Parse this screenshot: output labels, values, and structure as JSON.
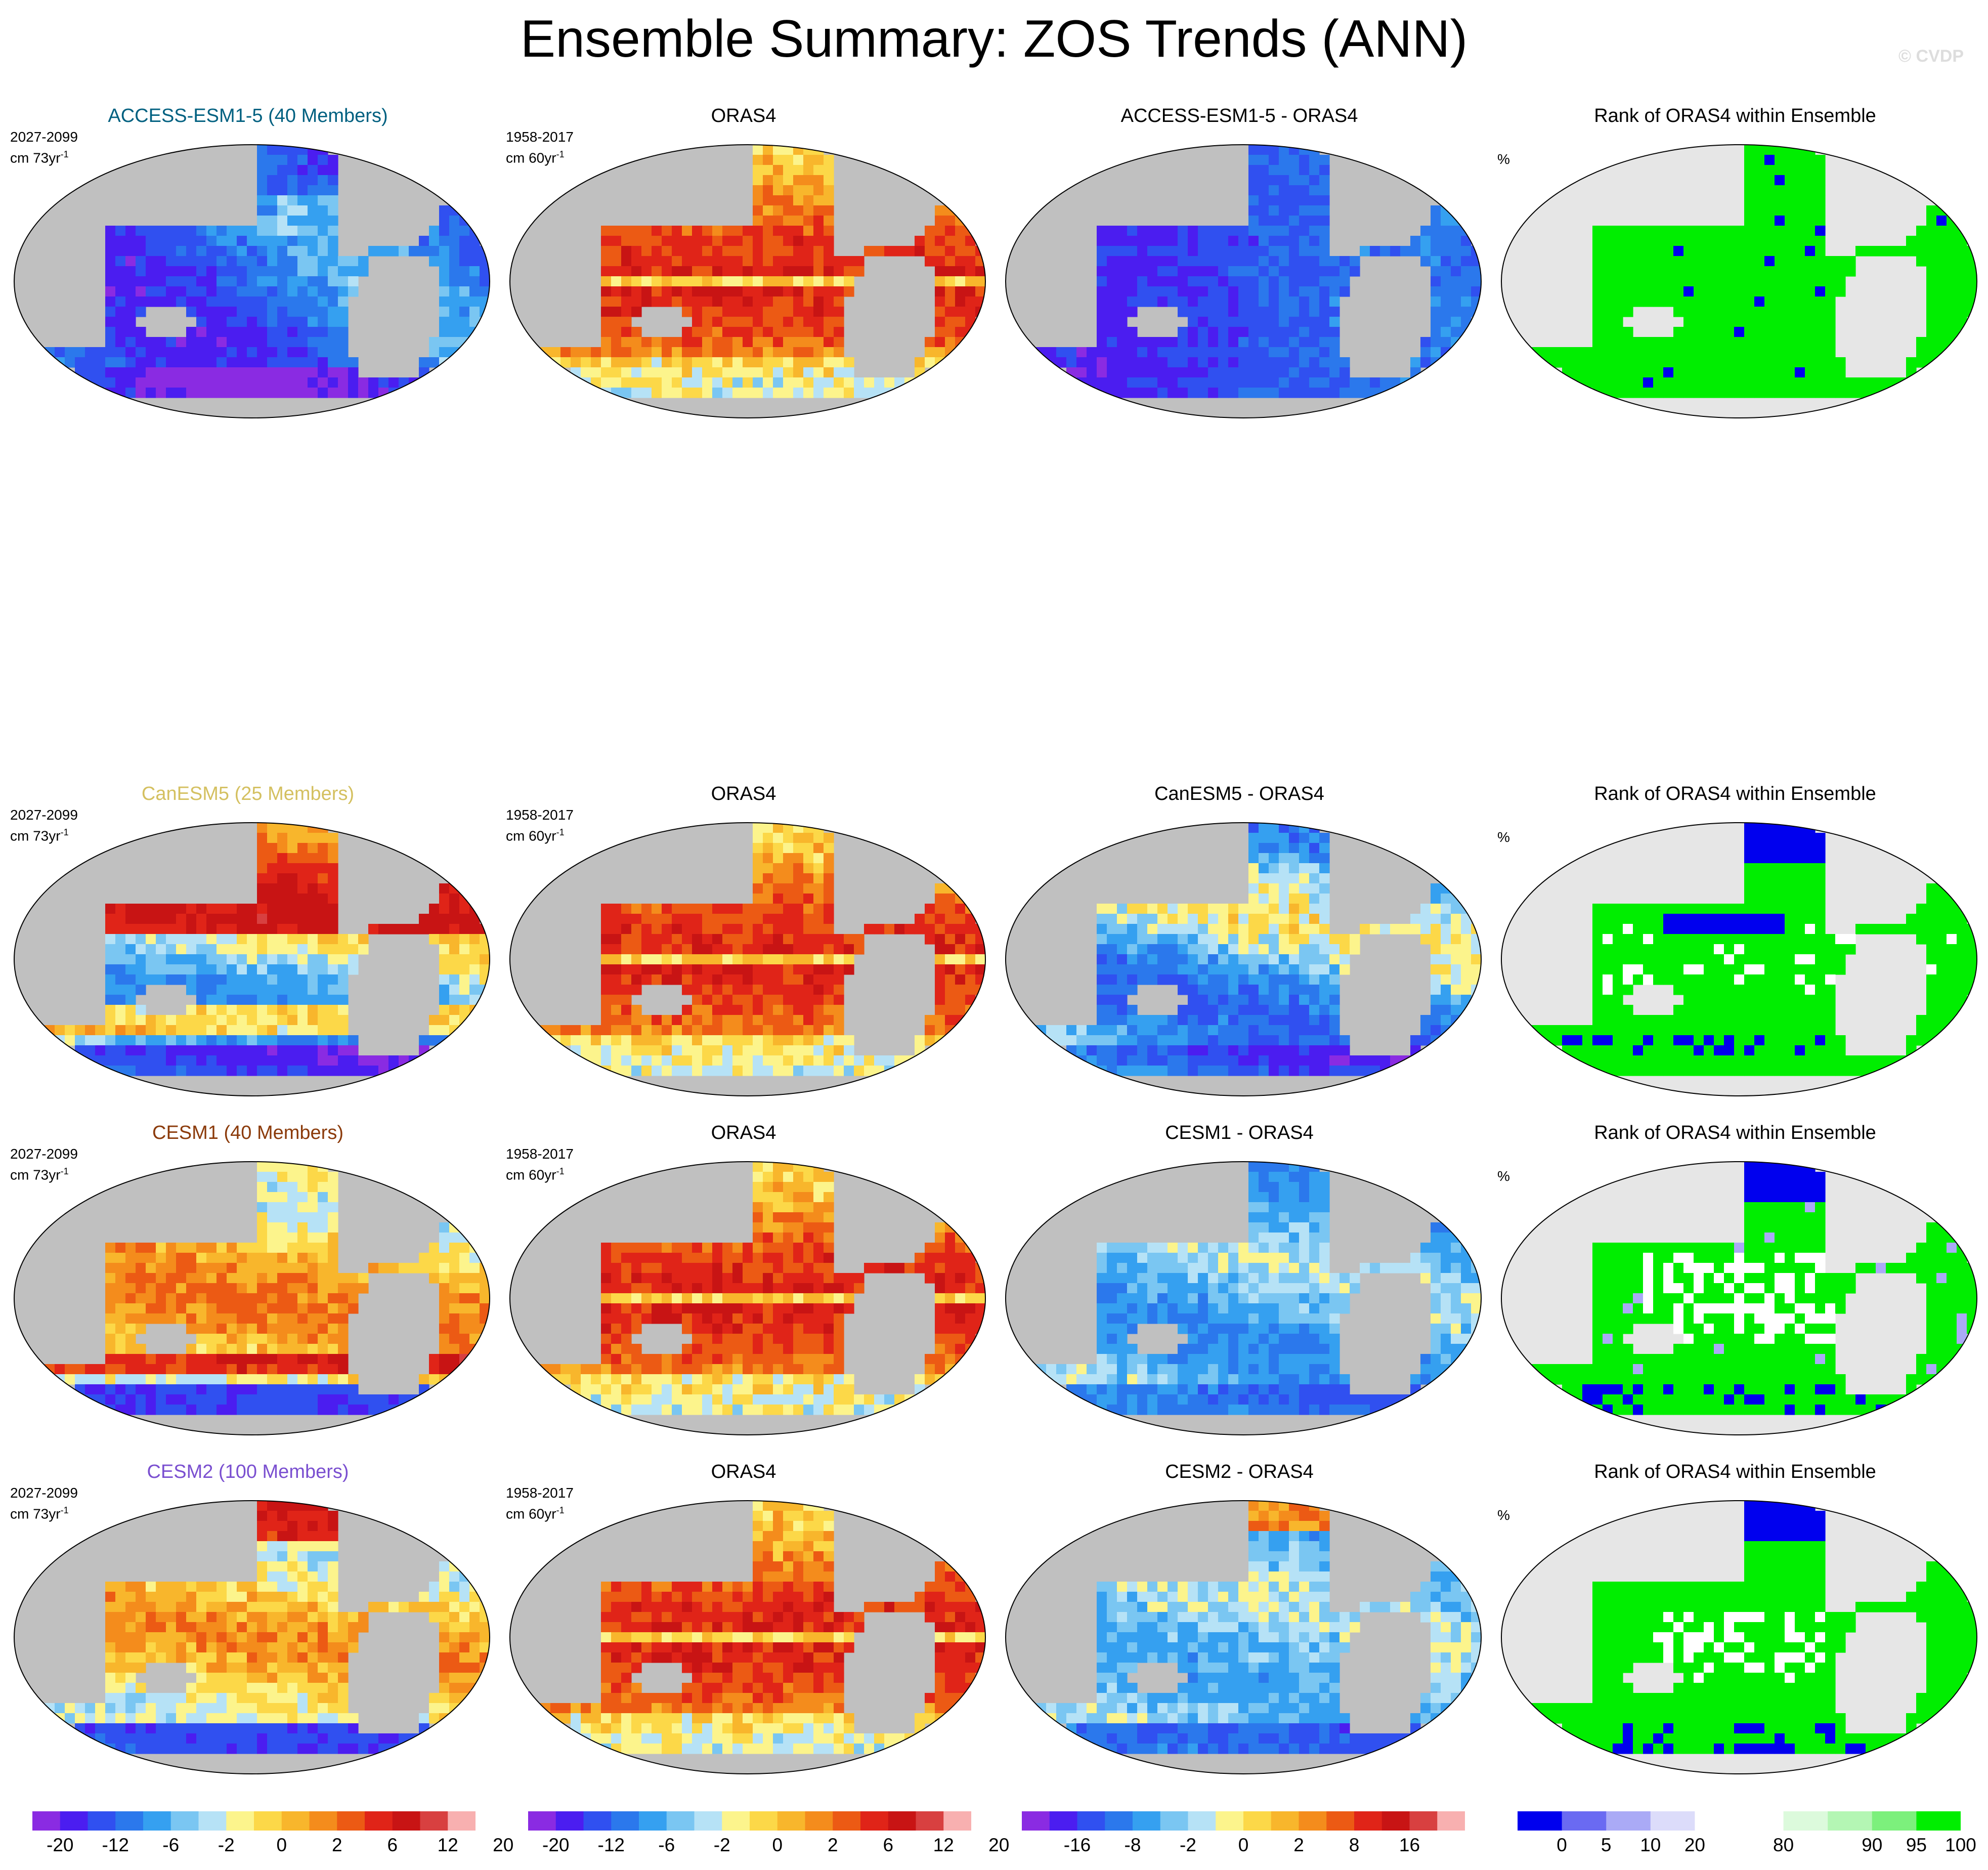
{
  "title": "Ensemble Summary: ZOS Trends (ANN)",
  "credit": "© CVDP",
  "colors": {
    "land": "#c0c0c0",
    "coast": "#8a8a8a",
    "trend_scale": [
      "#8a2be2",
      "#4b1df0",
      "#3050f0",
      "#2b78ec",
      "#35a0f0",
      "#7ac6f2",
      "#b6e2f6",
      "#fcf48c",
      "#fcd848",
      "#f8b62c",
      "#f48c1c",
      "#ec5a14",
      "#e02418",
      "#c81414",
      "#d84040",
      "#f8b0b0"
    ],
    "diff_scale": [
      "#8a2be2",
      "#4b1df0",
      "#3050f0",
      "#2b78ec",
      "#35a0f0",
      "#7ac6f2",
      "#b6e2f6",
      "#fcf48c",
      "#fcd848",
      "#f8b62c",
      "#f48c1c",
      "#ec5a14",
      "#e02418",
      "#c81414",
      "#d84040",
      "#f8b0b0"
    ],
    "rank_scale": [
      "#0000ee",
      "#6a6af2",
      "#aaaaf6",
      "#dcdcfa",
      "#ffffff",
      "#ffffff",
      "#dcfadc",
      "#b4f6b4",
      "#7cf07c",
      "#00ee00"
    ]
  },
  "rows": [
    {
      "model": {
        "title": "ACCESS-ESM1-5 (40 Members)",
        "title_color": "#006080",
        "period": "2027-2099",
        "units_base": "cm 73yr",
        "units_sup": "-1",
        "pattern": "neg-strong"
      },
      "obs": {
        "title": "ORAS4",
        "period": "1958-2017",
        "units_base": "cm 60yr",
        "units_sup": "-1",
        "pattern": "obs"
      },
      "diff": {
        "title": "ACCESS-ESM1-5 - ORAS4",
        "pattern": "diff-strong"
      },
      "rank": {
        "title": "Rank of ORAS4 within Ensemble",
        "units": "%",
        "pattern": "rank-green"
      }
    },
    {
      "model": {
        "title": "CanESM5 (25 Members)",
        "title_color": "#d4c060",
        "period": "2027-2099",
        "units_base": "cm 73yr",
        "units_sup": "-1",
        "pattern": "canesm"
      },
      "obs": {
        "title": "ORAS4",
        "period": "1958-2017",
        "units_base": "cm 60yr",
        "units_sup": "-1",
        "pattern": "obs"
      },
      "diff": {
        "title": "CanESM5 - ORAS4",
        "pattern": "diff-mixed"
      },
      "rank": {
        "title": "Rank of ORAS4 within Ensemble",
        "units": "%",
        "pattern": "rank-mixed"
      }
    },
    {
      "model": {
        "title": "CESM1 (40 Members)",
        "title_color": "#8b3a0a",
        "period": "2027-2099",
        "units_base": "cm 73yr",
        "units_sup": "-1",
        "pattern": "cesm1"
      },
      "obs": {
        "title": "ORAS4",
        "period": "1958-2017",
        "units_base": "cm 60yr",
        "units_sup": "-1",
        "pattern": "obs"
      },
      "diff": {
        "title": "CESM1 - ORAS4",
        "pattern": "diff-blue"
      },
      "rank": {
        "title": "Rank of ORAS4 within Ensemble",
        "units": "%",
        "pattern": "rank-mixed2"
      }
    },
    {
      "model": {
        "title": "CESM2 (100 Members)",
        "title_color": "#7a4fd0",
        "period": "2027-2099",
        "units_base": "cm 73yr",
        "units_sup": "-1",
        "pattern": "cesm2"
      },
      "obs": {
        "title": "ORAS4",
        "period": "1958-2017",
        "units_base": "cm 60yr",
        "units_sup": "-1",
        "pattern": "obs"
      },
      "diff": {
        "title": "CESM2 - ORAS4",
        "pattern": "diff-blue2"
      },
      "rank": {
        "title": "Rank of ORAS4 within Ensemble",
        "units": "%",
        "pattern": "rank-mixed3"
      }
    }
  ],
  "colorbars": [
    {
      "scale": "trend_scale",
      "labels": [
        "-20",
        "-12",
        "-6",
        "-2",
        "0",
        "2",
        "6",
        "12",
        "20"
      ],
      "label_slots": [
        1,
        3,
        5,
        7,
        9,
        11,
        13,
        15,
        17
      ]
    },
    {
      "scale": "trend_scale",
      "labels": [
        "-20",
        "-12",
        "-6",
        "-2",
        "0",
        "2",
        "6",
        "12",
        "20"
      ],
      "label_slots": [
        1,
        3,
        5,
        7,
        9,
        11,
        13,
        15,
        17
      ]
    },
    {
      "scale": "diff_scale",
      "labels": [
        "-16",
        "-8",
        "-2",
        "0",
        "2",
        "8",
        "16"
      ],
      "label_slots": [
        2,
        4,
        6,
        8,
        10,
        12,
        14
      ]
    },
    {
      "scale": "rank_scale",
      "labels": [
        "0",
        "5",
        "10",
        "20",
        "80",
        "90",
        "95",
        "100"
      ],
      "label_slots": [
        1,
        2,
        3,
        4,
        6,
        8,
        9,
        10
      ]
    }
  ]
}
